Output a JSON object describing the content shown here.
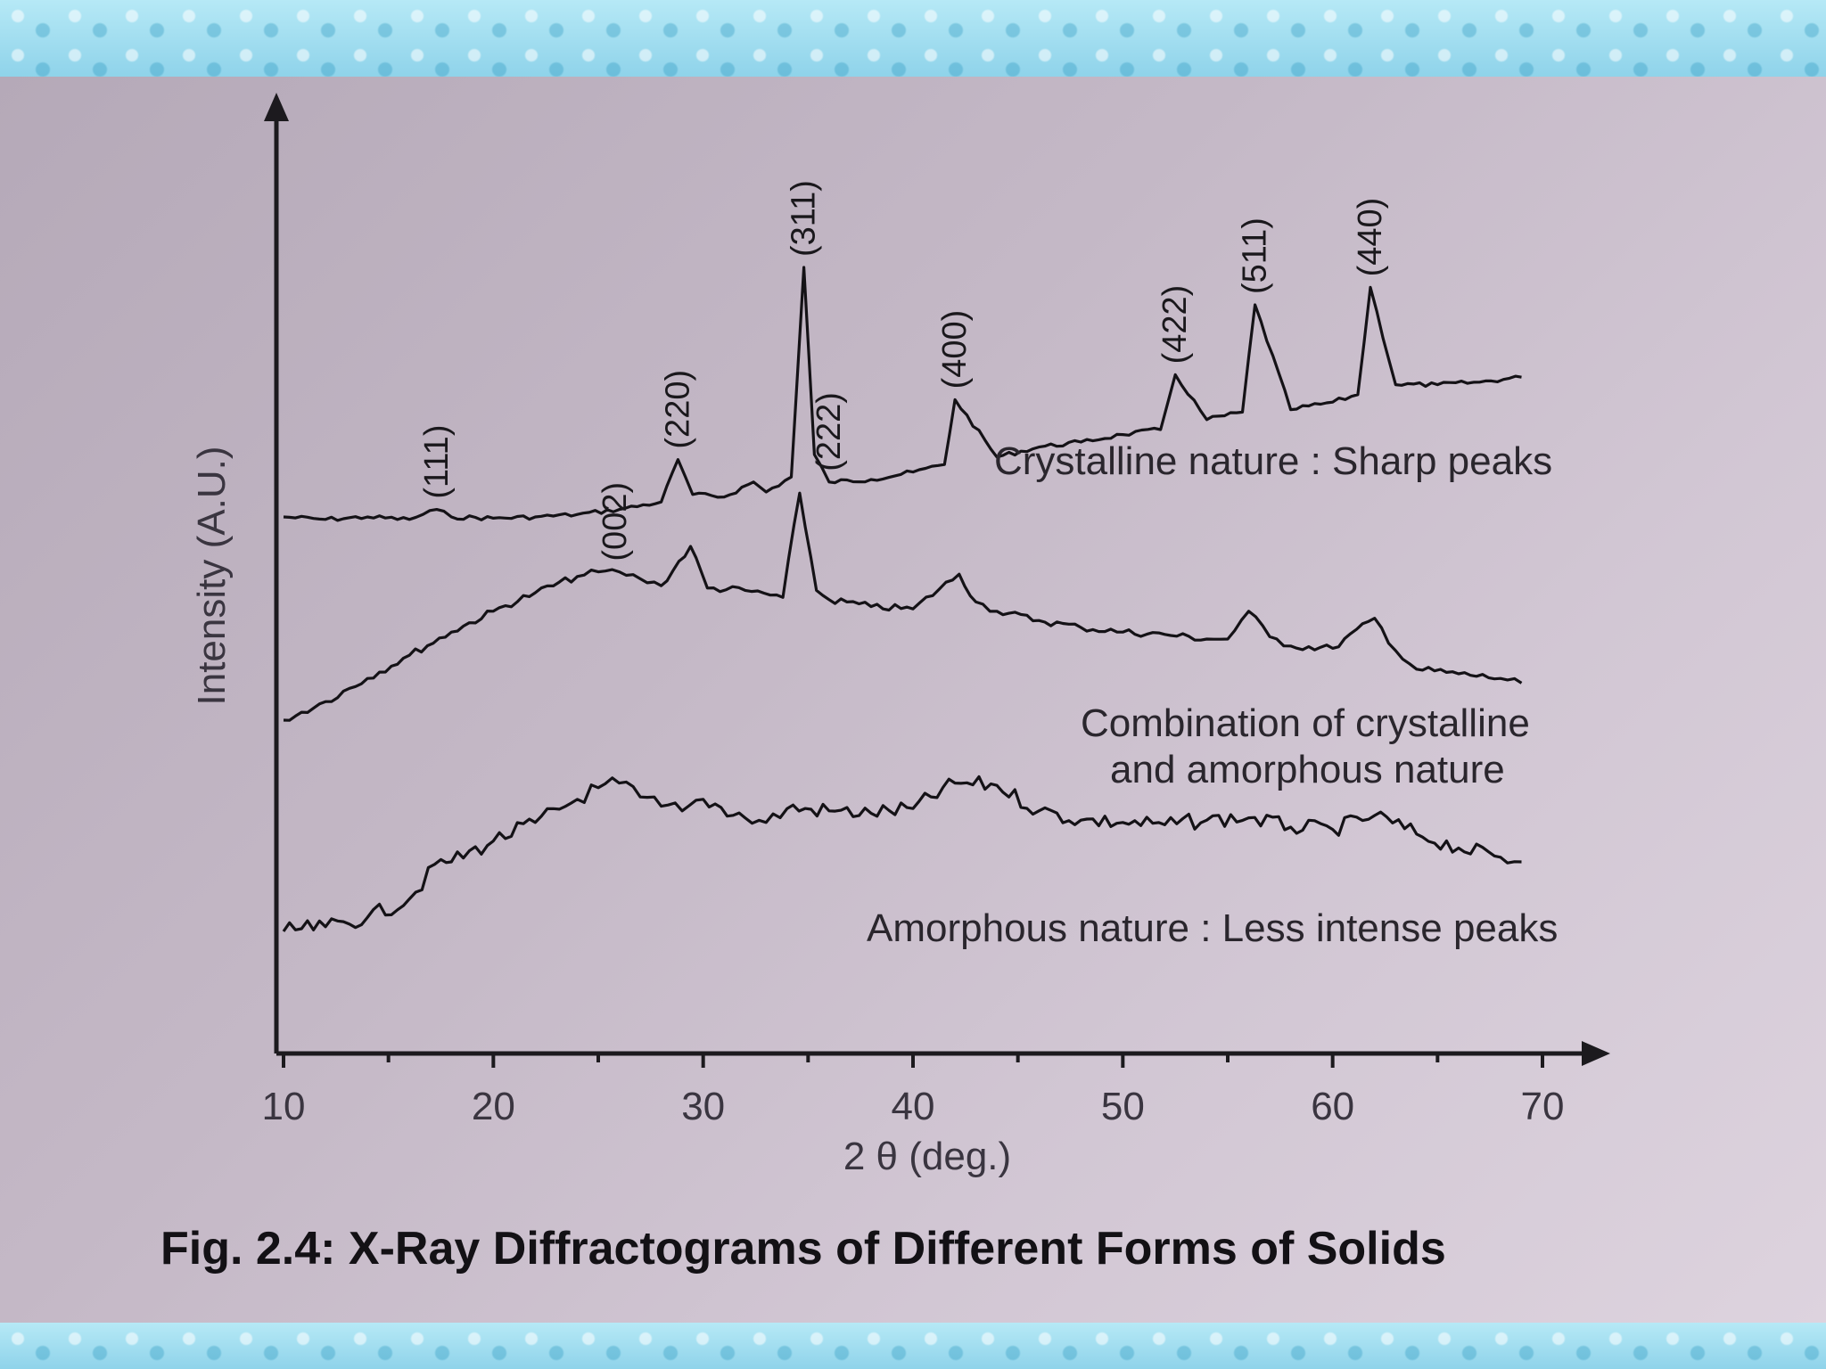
{
  "chart_data": {
    "type": "line",
    "title": "Fig. 2.4: X-Ray Diffractograms of Different Forms of Solids",
    "xlabel": "2 θ (deg.)",
    "ylabel": "Intensity (A.U.)",
    "xlim": [
      10,
      70
    ],
    "x_ticks": [
      "10",
      "20",
      "30",
      "40",
      "50",
      "60",
      "70"
    ],
    "grid": false,
    "series": [
      {
        "annotation": "Crystalline nature : Sharp peaks",
        "x": [
          10,
          12,
          14,
          16,
          17.3,
          18,
          20,
          22,
          24,
          26,
          28,
          28.8,
          29.5,
          31,
          32.4,
          33,
          34.2,
          34.8,
          35.3,
          36,
          38,
          40,
          41.5,
          42,
          44,
          46,
          48,
          50,
          51.8,
          52.5,
          54,
          55.7,
          56.3,
          58,
          60,
          61.2,
          61.8,
          63,
          65,
          67,
          69
        ],
        "y": [
          2.0,
          1.9,
          2.0,
          1.9,
          2.3,
          2.0,
          1.95,
          2.0,
          2.1,
          2.3,
          2.6,
          4.3,
          2.9,
          2.8,
          3.4,
          3.0,
          3.6,
          12.0,
          4.5,
          3.4,
          3.5,
          3.8,
          4.1,
          6.7,
          4.4,
          4.8,
          5.0,
          5.3,
          5.5,
          7.7,
          5.9,
          6.2,
          10.5,
          6.3,
          6.6,
          6.9,
          11.2,
          7.3,
          7.3,
          7.4,
          7.6
        ]
      },
      {
        "annotation": "Combination of crystalline and amorphous nature",
        "x": [
          10,
          12,
          14,
          16,
          18,
          20,
          22,
          24,
          25,
          26,
          27,
          28,
          29.4,
          30.2,
          32,
          33.8,
          34.6,
          35.4,
          36,
          38,
          40,
          42.2,
          43,
          44,
          46,
          48,
          50,
          52,
          54,
          55,
          56,
          57,
          58,
          60,
          62,
          63,
          64,
          66,
          68,
          69
        ],
        "y": [
          1.0,
          1.8,
          2.8,
          3.8,
          4.8,
          5.7,
          6.5,
          7.2,
          7.4,
          7.4,
          7.1,
          6.8,
          8.5,
          6.7,
          6.6,
          6.3,
          10.8,
          6.6,
          6.2,
          5.9,
          5.8,
          7.3,
          6.1,
          5.7,
          5.3,
          5.0,
          4.8,
          4.7,
          4.5,
          4.5,
          5.7,
          4.6,
          4.2,
          4.1,
          5.4,
          4.0,
          3.2,
          3.0,
          2.8,
          2.6
        ]
      },
      {
        "annotation": "Amorphous nature : Less intense peaks",
        "x": [
          10,
          12,
          14,
          16,
          17.5,
          18,
          20,
          22,
          24,
          25,
          26,
          27,
          28,
          29,
          30,
          32,
          33,
          34,
          36,
          38,
          40,
          42,
          44,
          46,
          48,
          50,
          52,
          54,
          56,
          58,
          60,
          62,
          64,
          66,
          68,
          69
        ],
        "y": [
          1.0,
          1.2,
          1.6,
          2.4,
          4.1,
          4.0,
          4.9,
          5.7,
          6.7,
          7.2,
          7.4,
          6.8,
          6.4,
          6.2,
          6.7,
          5.9,
          5.7,
          6.3,
          6.2,
          6.1,
          6.3,
          7.4,
          7.3,
          6.2,
          5.8,
          5.7,
          5.6,
          5.8,
          5.9,
          5.5,
          5.4,
          6.0,
          5.2,
          4.6,
          4.2,
          4.0
        ]
      }
    ],
    "peak_labels": [
      {
        "text": "(111)",
        "x": 17.3,
        "series": 0
      },
      {
        "text": "(220)",
        "x": 28.8,
        "series": 0
      },
      {
        "text": "(311)",
        "x": 34.8,
        "series": 0
      },
      {
        "text": "(222)",
        "x": 36.0,
        "series": 0
      },
      {
        "text": "(400)",
        "x": 42.0,
        "series": 0
      },
      {
        "text": "(422)",
        "x": 52.5,
        "series": 0
      },
      {
        "text": "(511)",
        "x": 56.3,
        "series": 0
      },
      {
        "text": "(440)",
        "x": 61.8,
        "series": 0
      },
      {
        "text": "(002)",
        "x": 25.8,
        "series": 1
      }
    ]
  }
}
